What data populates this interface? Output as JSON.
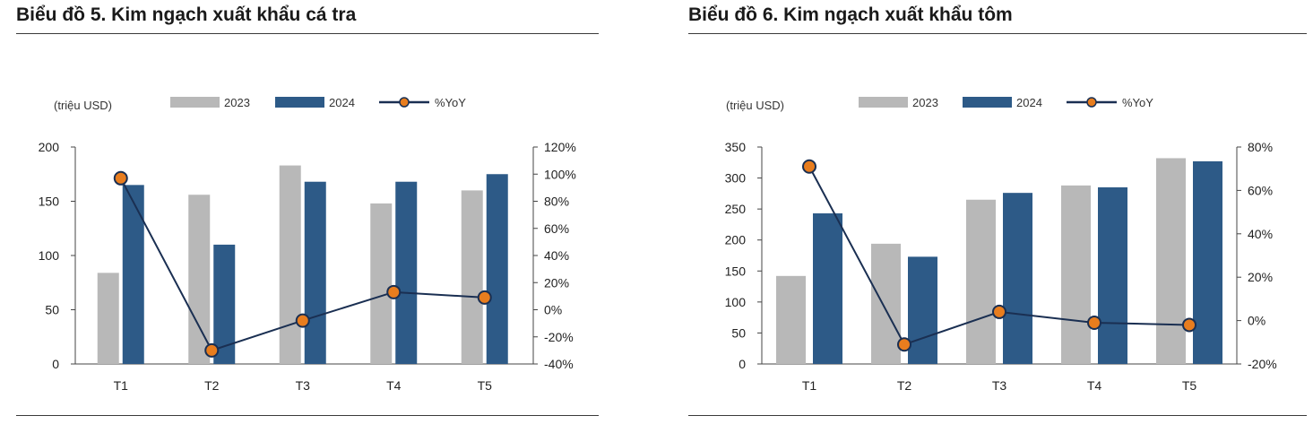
{
  "charts": [
    {
      "title": "Biểu đồ 5. Kim ngạch xuất khẩu cá tra",
      "unit": "(triệu USD)",
      "legend": [
        "2023",
        "2024",
        "%YoY"
      ],
      "x_ticks": [
        "T1",
        "T2",
        "T3",
        "T4",
        "T5"
      ],
      "y_ticks": [
        "0",
        "50",
        "100",
        "150",
        "200"
      ],
      "y2_ticks": [
        "-40%",
        "-20%",
        "0%",
        "20%",
        "40%",
        "60%",
        "80%",
        "100%",
        "120%"
      ]
    },
    {
      "title": "Biểu đồ 6. Kim ngạch xuất khẩu tôm",
      "unit": "(triệu USD)",
      "legend": [
        "2023",
        "2024",
        "%YoY"
      ],
      "x_ticks": [
        "T1",
        "T2",
        "T3",
        "T4",
        "T5"
      ],
      "y_ticks": [
        "0",
        "50",
        "100",
        "150",
        "200",
        "250",
        "300",
        "350"
      ],
      "y2_ticks": [
        "-20%",
        "0%",
        "20%",
        "40%",
        "60%",
        "80%"
      ]
    }
  ],
  "colors": {
    "bar_2023": "#b8b8b8",
    "bar_2024": "#2d5a87",
    "line": "#1a2f52",
    "marker": "#e87d1e"
  },
  "chart_data": [
    {
      "type": "bar",
      "title": "Biểu đồ 5. Kim ngạch xuất khẩu cá tra",
      "categories": [
        "T1",
        "T2",
        "T3",
        "T4",
        "T5"
      ],
      "series": [
        {
          "name": "2023",
          "type": "bar",
          "axis": "left",
          "values": [
            84,
            156,
            183,
            148,
            160
          ]
        },
        {
          "name": "2024",
          "type": "bar",
          "axis": "left",
          "values": [
            165,
            110,
            168,
            168,
            175
          ]
        },
        {
          "name": "%YoY",
          "type": "line",
          "axis": "right",
          "values": [
            97,
            -30,
            -8,
            13,
            9
          ]
        }
      ],
      "ylabel": "(triệu USD)",
      "ylim": [
        0,
        200
      ],
      "y2lim": [
        -40,
        120
      ],
      "legend_position": "top"
    },
    {
      "type": "bar",
      "title": "Biểu đồ 6. Kim ngạch xuất khẩu tôm",
      "categories": [
        "T1",
        "T2",
        "T3",
        "T4",
        "T5"
      ],
      "series": [
        {
          "name": "2023",
          "type": "bar",
          "axis": "left",
          "values": [
            142,
            194,
            265,
            288,
            332
          ]
        },
        {
          "name": "2024",
          "type": "bar",
          "axis": "left",
          "values": [
            243,
            173,
            276,
            285,
            327
          ]
        },
        {
          "name": "%YoY",
          "type": "line",
          "axis": "right",
          "values": [
            71,
            -11,
            4,
            -1,
            -2
          ]
        }
      ],
      "ylabel": "(triệu USD)",
      "ylim": [
        0,
        350
      ],
      "y2lim": [
        -20,
        80
      ],
      "legend_position": "top"
    }
  ]
}
